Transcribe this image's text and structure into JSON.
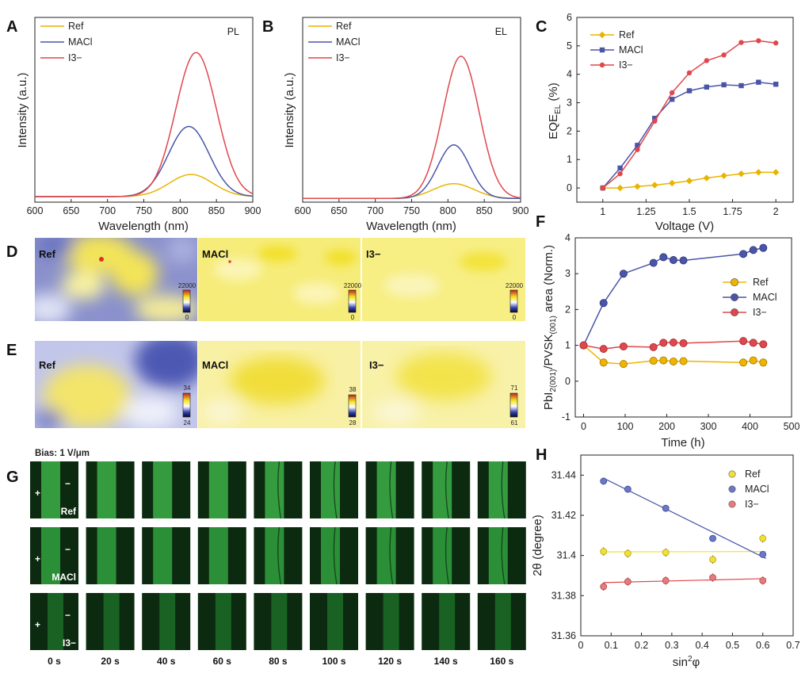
{
  "panels": {
    "A": {
      "label": "A",
      "tag": "PL",
      "xlabel": "Wavelength (nm)",
      "ylabel": "Intensity (a.u.)",
      "xlim": [
        600,
        900
      ],
      "xticks": [
        "600",
        "650",
        "700",
        "750",
        "800",
        "850",
        "900"
      ],
      "legend": [
        {
          "name": "Ref",
          "color": "#e8b400"
        },
        {
          "name": "MACl",
          "color": "#4a55a8"
        },
        {
          "name": "I3−",
          "color": "#e0474c"
        }
      ]
    },
    "B": {
      "label": "B",
      "tag": "EL",
      "xlabel": "Wavelength (nm)",
      "ylabel": "Intensity (a.u.)",
      "xlim": [
        600,
        900
      ],
      "xticks": [
        "600",
        "650",
        "700",
        "750",
        "800",
        "850",
        "900"
      ],
      "legend": [
        {
          "name": "Ref",
          "color": "#e8b400"
        },
        {
          "name": "MACl",
          "color": "#4a55a8"
        },
        {
          "name": "I3−",
          "color": "#e0474c"
        }
      ]
    },
    "C": {
      "label": "C"
    },
    "D": {
      "label": "D",
      "maps": [
        {
          "title": "Ref",
          "scale_max": "22000",
          "scale_min": "0"
        },
        {
          "title": "MACl",
          "scale_max": "22000",
          "scale_min": "0"
        },
        {
          "title": "I3−",
          "scale_max": "22000",
          "scale_min": "0"
        }
      ]
    },
    "E": {
      "label": "E",
      "maps": [
        {
          "title": "Ref",
          "scale_max": "34",
          "scale_min": "24"
        },
        {
          "title": "MACl",
          "scale_max": "38",
          "scale_min": "28"
        },
        {
          "title": "I3−",
          "scale_max": "71",
          "scale_min": "61"
        }
      ]
    },
    "F": {
      "label": "F"
    },
    "G": {
      "label": "G",
      "bias": "Bias: 1 V/μm",
      "plus": "+",
      "minus": "−",
      "rows": [
        "Ref",
        "MACl",
        "I3−"
      ],
      "times": [
        "0 s",
        "20 s",
        "40 s",
        "60 s",
        "80 s",
        "100 s",
        "120 s",
        "140 s",
        "160 s"
      ]
    },
    "H": {
      "label": "H"
    }
  },
  "chart_data": [
    {
      "id": "A",
      "type": "line",
      "title": "PL",
      "xlabel": "Wavelength (nm)",
      "ylabel": "Intensity (a.u.)",
      "xlim": [
        600,
        900
      ],
      "ylim": [
        0,
        1.0
      ],
      "series": [
        {
          "name": "Ref",
          "color": "#e8b400",
          "peak_x": 815,
          "amplitude": 0.12,
          "sigma": 30,
          "baseline": 0.03
        },
        {
          "name": "MACl",
          "color": "#4a55a8",
          "peak_x": 812,
          "amplitude": 0.38,
          "sigma": 28,
          "baseline": 0.03
        },
        {
          "name": "I3−",
          "color": "#e0474c",
          "peak_x": 822,
          "amplitude": 0.78,
          "sigma": 28,
          "baseline": 0.03
        }
      ]
    },
    {
      "id": "B",
      "type": "line",
      "title": "EL",
      "xlabel": "Wavelength (nm)",
      "ylabel": "Intensity (a.u.)",
      "xlim": [
        600,
        900
      ],
      "ylim": [
        0,
        1.0
      ],
      "series": [
        {
          "name": "Ref",
          "color": "#e8b400",
          "peak_x": 808,
          "amplitude": 0.08,
          "sigma": 28,
          "baseline": 0.02
        },
        {
          "name": "MACl",
          "color": "#4a55a8",
          "peak_x": 808,
          "amplitude": 0.29,
          "sigma": 22,
          "baseline": 0.02
        },
        {
          "name": "I3−",
          "color": "#e0474c",
          "peak_x": 818,
          "amplitude": 0.77,
          "sigma": 25,
          "baseline": 0.02
        }
      ]
    },
    {
      "id": "C",
      "type": "line",
      "xlabel": "Voltage (V)",
      "ylabel": "EQE_EL (%)",
      "xlim": [
        0.85,
        2.1
      ],
      "ylim": [
        -0.5,
        6
      ],
      "xticks": [
        1,
        1.25,
        1.5,
        1.75,
        2
      ],
      "xticklabels": [
        "1",
        "1.25",
        "1.5",
        "1.75",
        "2"
      ],
      "yticks": [
        0,
        1,
        2,
        3,
        4,
        5,
        6
      ],
      "yticklabels": [
        "0",
        "1",
        "2",
        "3",
        "4",
        "5",
        "6"
      ],
      "series": [
        {
          "name": "Ref",
          "color": "#e8b400",
          "marker": "diamond",
          "x": [
            1,
            1.1,
            1.2,
            1.3,
            1.4,
            1.5,
            1.6,
            1.7,
            1.8,
            1.9,
            2.0
          ],
          "y": [
            0,
            0,
            0.05,
            0.1,
            0.17,
            0.25,
            0.35,
            0.43,
            0.5,
            0.55,
            0.55
          ]
        },
        {
          "name": "MACl",
          "color": "#4a55a8",
          "marker": "square",
          "x": [
            1,
            1.1,
            1.2,
            1.3,
            1.4,
            1.5,
            1.6,
            1.7,
            1.8,
            1.9,
            2.0
          ],
          "y": [
            0,
            0.7,
            1.5,
            2.45,
            3.12,
            3.42,
            3.55,
            3.63,
            3.6,
            3.72,
            3.65
          ]
        },
        {
          "name": "I3−",
          "color": "#e0474c",
          "marker": "circle",
          "x": [
            1,
            1.1,
            1.2,
            1.3,
            1.4,
            1.5,
            1.6,
            1.7,
            1.8,
            1.9,
            2.0
          ],
          "y": [
            0,
            0.5,
            1.35,
            2.35,
            3.35,
            4.05,
            4.48,
            4.68,
            5.12,
            5.18,
            5.1
          ]
        }
      ]
    },
    {
      "id": "F",
      "type": "line",
      "xlabel": "Time (h)",
      "ylabel": "PbI2(001)/PVSK(001) area (Norm.)",
      "xlim": [
        -20,
        500
      ],
      "ylim": [
        -1,
        4
      ],
      "xticks": [
        0,
        100,
        200,
        300,
        400,
        500
      ],
      "xticklabels": [
        "0",
        "100",
        "200",
        "300",
        "400",
        "500"
      ],
      "yticks": [
        -1,
        0,
        1,
        2,
        3,
        4
      ],
      "yticklabels": [
        "-1",
        "0",
        "1",
        "2",
        "3",
        "4"
      ],
      "series": [
        {
          "name": "Ref",
          "color": "#f0b400",
          "marker": "circle",
          "x": [
            0,
            48,
            96,
            168,
            192,
            216,
            240,
            384,
            408,
            432
          ],
          "y": [
            1.0,
            0.52,
            0.48,
            0.57,
            0.58,
            0.55,
            0.56,
            0.52,
            0.58,
            0.52
          ]
        },
        {
          "name": "MACl",
          "color": "#4a55a8",
          "marker": "circle",
          "x": [
            0,
            48,
            96,
            168,
            192,
            216,
            240,
            384,
            408,
            432
          ],
          "y": [
            1.0,
            2.18,
            3.0,
            3.3,
            3.46,
            3.38,
            3.37,
            3.55,
            3.66,
            3.72
          ]
        },
        {
          "name": "I3−",
          "color": "#e0474c",
          "marker": "circle",
          "x": [
            0,
            48,
            96,
            168,
            192,
            216,
            240,
            384,
            408,
            432
          ],
          "y": [
            1.0,
            0.9,
            0.97,
            0.95,
            1.07,
            1.08,
            1.06,
            1.12,
            1.07,
            1.03
          ]
        }
      ]
    },
    {
      "id": "H",
      "type": "scatter",
      "xlabel": "sin²φ",
      "ylabel": "2θ (degree)",
      "xlim": [
        0,
        0.7
      ],
      "ylim": [
        31.36,
        31.45
      ],
      "xticks": [
        0,
        0.1,
        0.2,
        0.3,
        0.4,
        0.5,
        0.6,
        0.7
      ],
      "xticklabels": [
        "0",
        "0.1",
        "0.2",
        "0.3",
        "0.4",
        "0.5",
        "0.6",
        "0.7"
      ],
      "yticks": [
        31.36,
        31.38,
        31.4,
        31.42,
        31.44
      ],
      "yticklabels": [
        "31.36",
        "31.38",
        "31.4",
        "31.42",
        "31.44"
      ],
      "series": [
        {
          "name": "Ref",
          "color": "#f2e03a",
          "x": [
            0.075,
            0.155,
            0.28,
            0.435,
            0.6
          ],
          "y": [
            31.402,
            31.401,
            31.4015,
            31.398,
            31.4085
          ],
          "err": 0.002,
          "fit": [
            31.4018,
            31.402
          ]
        },
        {
          "name": "MACl",
          "color": "#6b78c6",
          "x": [
            0.075,
            0.155,
            0.28,
            0.435,
            0.6
          ],
          "y": [
            31.437,
            31.433,
            31.4235,
            31.4085,
            31.4005
          ],
          "err": 0.0015,
          "fit": [
            31.4385,
            31.3985
          ]
        },
        {
          "name": "I3−",
          "color": "#e8797c",
          "x": [
            0.075,
            0.155,
            0.28,
            0.435,
            0.6
          ],
          "y": [
            31.3845,
            31.387,
            31.3875,
            31.389,
            31.3875
          ],
          "err": 0.002,
          "fit": [
            31.3865,
            31.3885
          ]
        }
      ]
    }
  ]
}
